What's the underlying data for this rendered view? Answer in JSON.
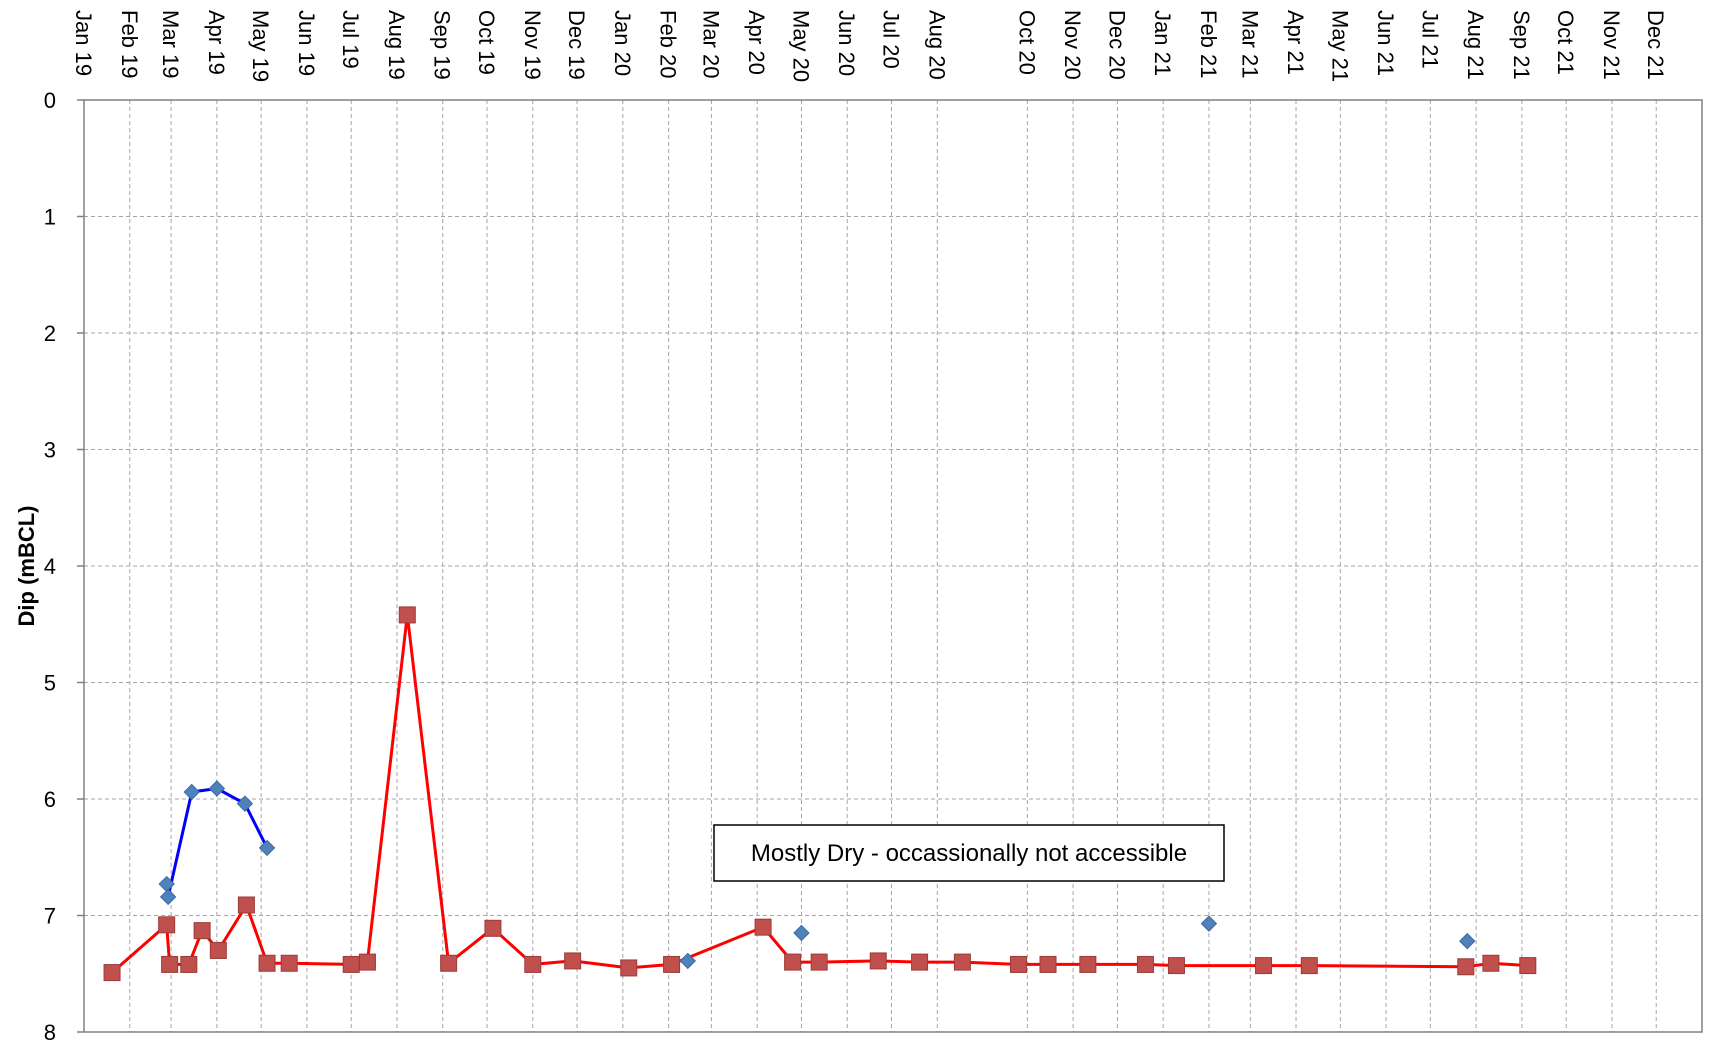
{
  "chart_data": {
    "type": "line",
    "title": "",
    "xlabel": "",
    "ylabel": "Dip (mBCL)",
    "ylim": [
      0,
      8
    ],
    "y_inverted": true,
    "y_ticks": [
      "0",
      "1",
      "2",
      "3",
      "4",
      "5",
      "6",
      "7",
      "8"
    ],
    "x_range": [
      "2019-01-01",
      "2022-01-01"
    ],
    "x_ticks": [
      "Jan 19",
      "Feb 19",
      "Mar 19",
      "Apr 19",
      "May 19",
      "Jun 19",
      "Jul 19",
      "Aug 19",
      "Sep 19",
      "Oct 19",
      "Nov 19",
      "Dec 19",
      "Jan 20",
      "Feb 20",
      "Mar 20",
      "Apr 20",
      "May 20",
      "Jun 20",
      "Jul 20",
      "Aug 20",
      "Oct 20",
      "Nov 20",
      "Dec 20",
      "Jan 21",
      "Feb 21",
      "Mar 21",
      "Apr 21",
      "May 21",
      "Jun 21",
      "Jul 21",
      "Aug 21",
      "Sep 21",
      "Oct 21",
      "Nov 21",
      "Dec 21"
    ],
    "x_tick_dates": [
      "2019-01-01",
      "2019-02-01",
      "2019-03-01",
      "2019-04-01",
      "2019-05-01",
      "2019-06-01",
      "2019-07-01",
      "2019-08-01",
      "2019-09-01",
      "2019-10-01",
      "2019-11-01",
      "2019-12-01",
      "2020-01-01",
      "2020-02-01",
      "2020-03-01",
      "2020-04-01",
      "2020-05-01",
      "2020-06-01",
      "2020-07-01",
      "2020-08-01",
      "2020-10-01",
      "2020-11-01",
      "2020-12-01",
      "2021-01-01",
      "2021-02-01",
      "2021-03-01",
      "2021-04-01",
      "2021-05-01",
      "2021-06-01",
      "2021-07-01",
      "2021-08-01",
      "2021-09-01",
      "2021-10-01",
      "2021-11-01",
      "2021-12-01"
    ],
    "grid": true,
    "annotation": "Mostly Dry - occassionally not accessible",
    "series": [
      {
        "marker": "diamond",
        "color": "#4f81bd",
        "line_color": "#0000ff",
        "points": [
          {
            "x": "2019-02-26",
            "y": 6.73,
            "connected": true
          },
          {
            "x": "2019-02-27",
            "y": 6.84,
            "connected": true
          },
          {
            "x": "2019-03-15",
            "y": 5.94,
            "connected": true
          },
          {
            "x": "2019-04-01",
            "y": 5.91,
            "connected": true
          },
          {
            "x": "2019-04-20",
            "y": 6.04,
            "connected": true
          },
          {
            "x": "2019-05-05",
            "y": 6.42,
            "connected": true
          },
          {
            "x": "2020-02-14",
            "y": 7.39,
            "connected": false
          },
          {
            "x": "2020-05-01",
            "y": 7.15,
            "connected": false
          },
          {
            "x": "2021-02-01",
            "y": 7.07,
            "connected": false
          },
          {
            "x": "2021-07-26",
            "y": 7.22,
            "connected": false
          }
        ]
      },
      {
        "marker": "square",
        "color": "#c0504d",
        "line_color": "#ff0000",
        "points": [
          {
            "x": "2019-01-20",
            "y": 7.49
          },
          {
            "x": "2019-02-26",
            "y": 7.08
          },
          {
            "x": "2019-02-28",
            "y": 7.42
          },
          {
            "x": "2019-03-13",
            "y": 7.42
          },
          {
            "x": "2019-03-22",
            "y": 7.13
          },
          {
            "x": "2019-04-02",
            "y": 7.3
          },
          {
            "x": "2019-04-21",
            "y": 6.91
          },
          {
            "x": "2019-05-05",
            "y": 7.41
          },
          {
            "x": "2019-05-20",
            "y": 7.41
          },
          {
            "x": "2019-07-01",
            "y": 7.42
          },
          {
            "x": "2019-07-12",
            "y": 7.4
          },
          {
            "x": "2019-08-08",
            "y": 4.42
          },
          {
            "x": "2019-09-05",
            "y": 7.41
          },
          {
            "x": "2019-10-05",
            "y": 7.11
          },
          {
            "x": "2019-11-01",
            "y": 7.42
          },
          {
            "x": "2019-11-28",
            "y": 7.39
          },
          {
            "x": "2020-01-05",
            "y": 7.45
          },
          {
            "x": "2020-02-03",
            "y": 7.42
          },
          {
            "x": "2020-04-05",
            "y": 7.1
          },
          {
            "x": "2020-04-25",
            "y": 7.4
          },
          {
            "x": "2020-05-13",
            "y": 7.4
          },
          {
            "x": "2020-06-22",
            "y": 7.39
          },
          {
            "x": "2020-07-20",
            "y": 7.4
          },
          {
            "x": "2020-08-18",
            "y": 7.4
          },
          {
            "x": "2020-09-25",
            "y": 7.42
          },
          {
            "x": "2020-10-15",
            "y": 7.42
          },
          {
            "x": "2020-11-11",
            "y": 7.42
          },
          {
            "x": "2020-12-20",
            "y": 7.42
          },
          {
            "x": "2021-01-10",
            "y": 7.43
          },
          {
            "x": "2021-03-10",
            "y": 7.43
          },
          {
            "x": "2021-04-10",
            "y": 7.43
          },
          {
            "x": "2021-07-25",
            "y": 7.44
          },
          {
            "x": "2021-08-11",
            "y": 7.41
          },
          {
            "x": "2021-09-05",
            "y": 7.43
          }
        ]
      }
    ]
  }
}
